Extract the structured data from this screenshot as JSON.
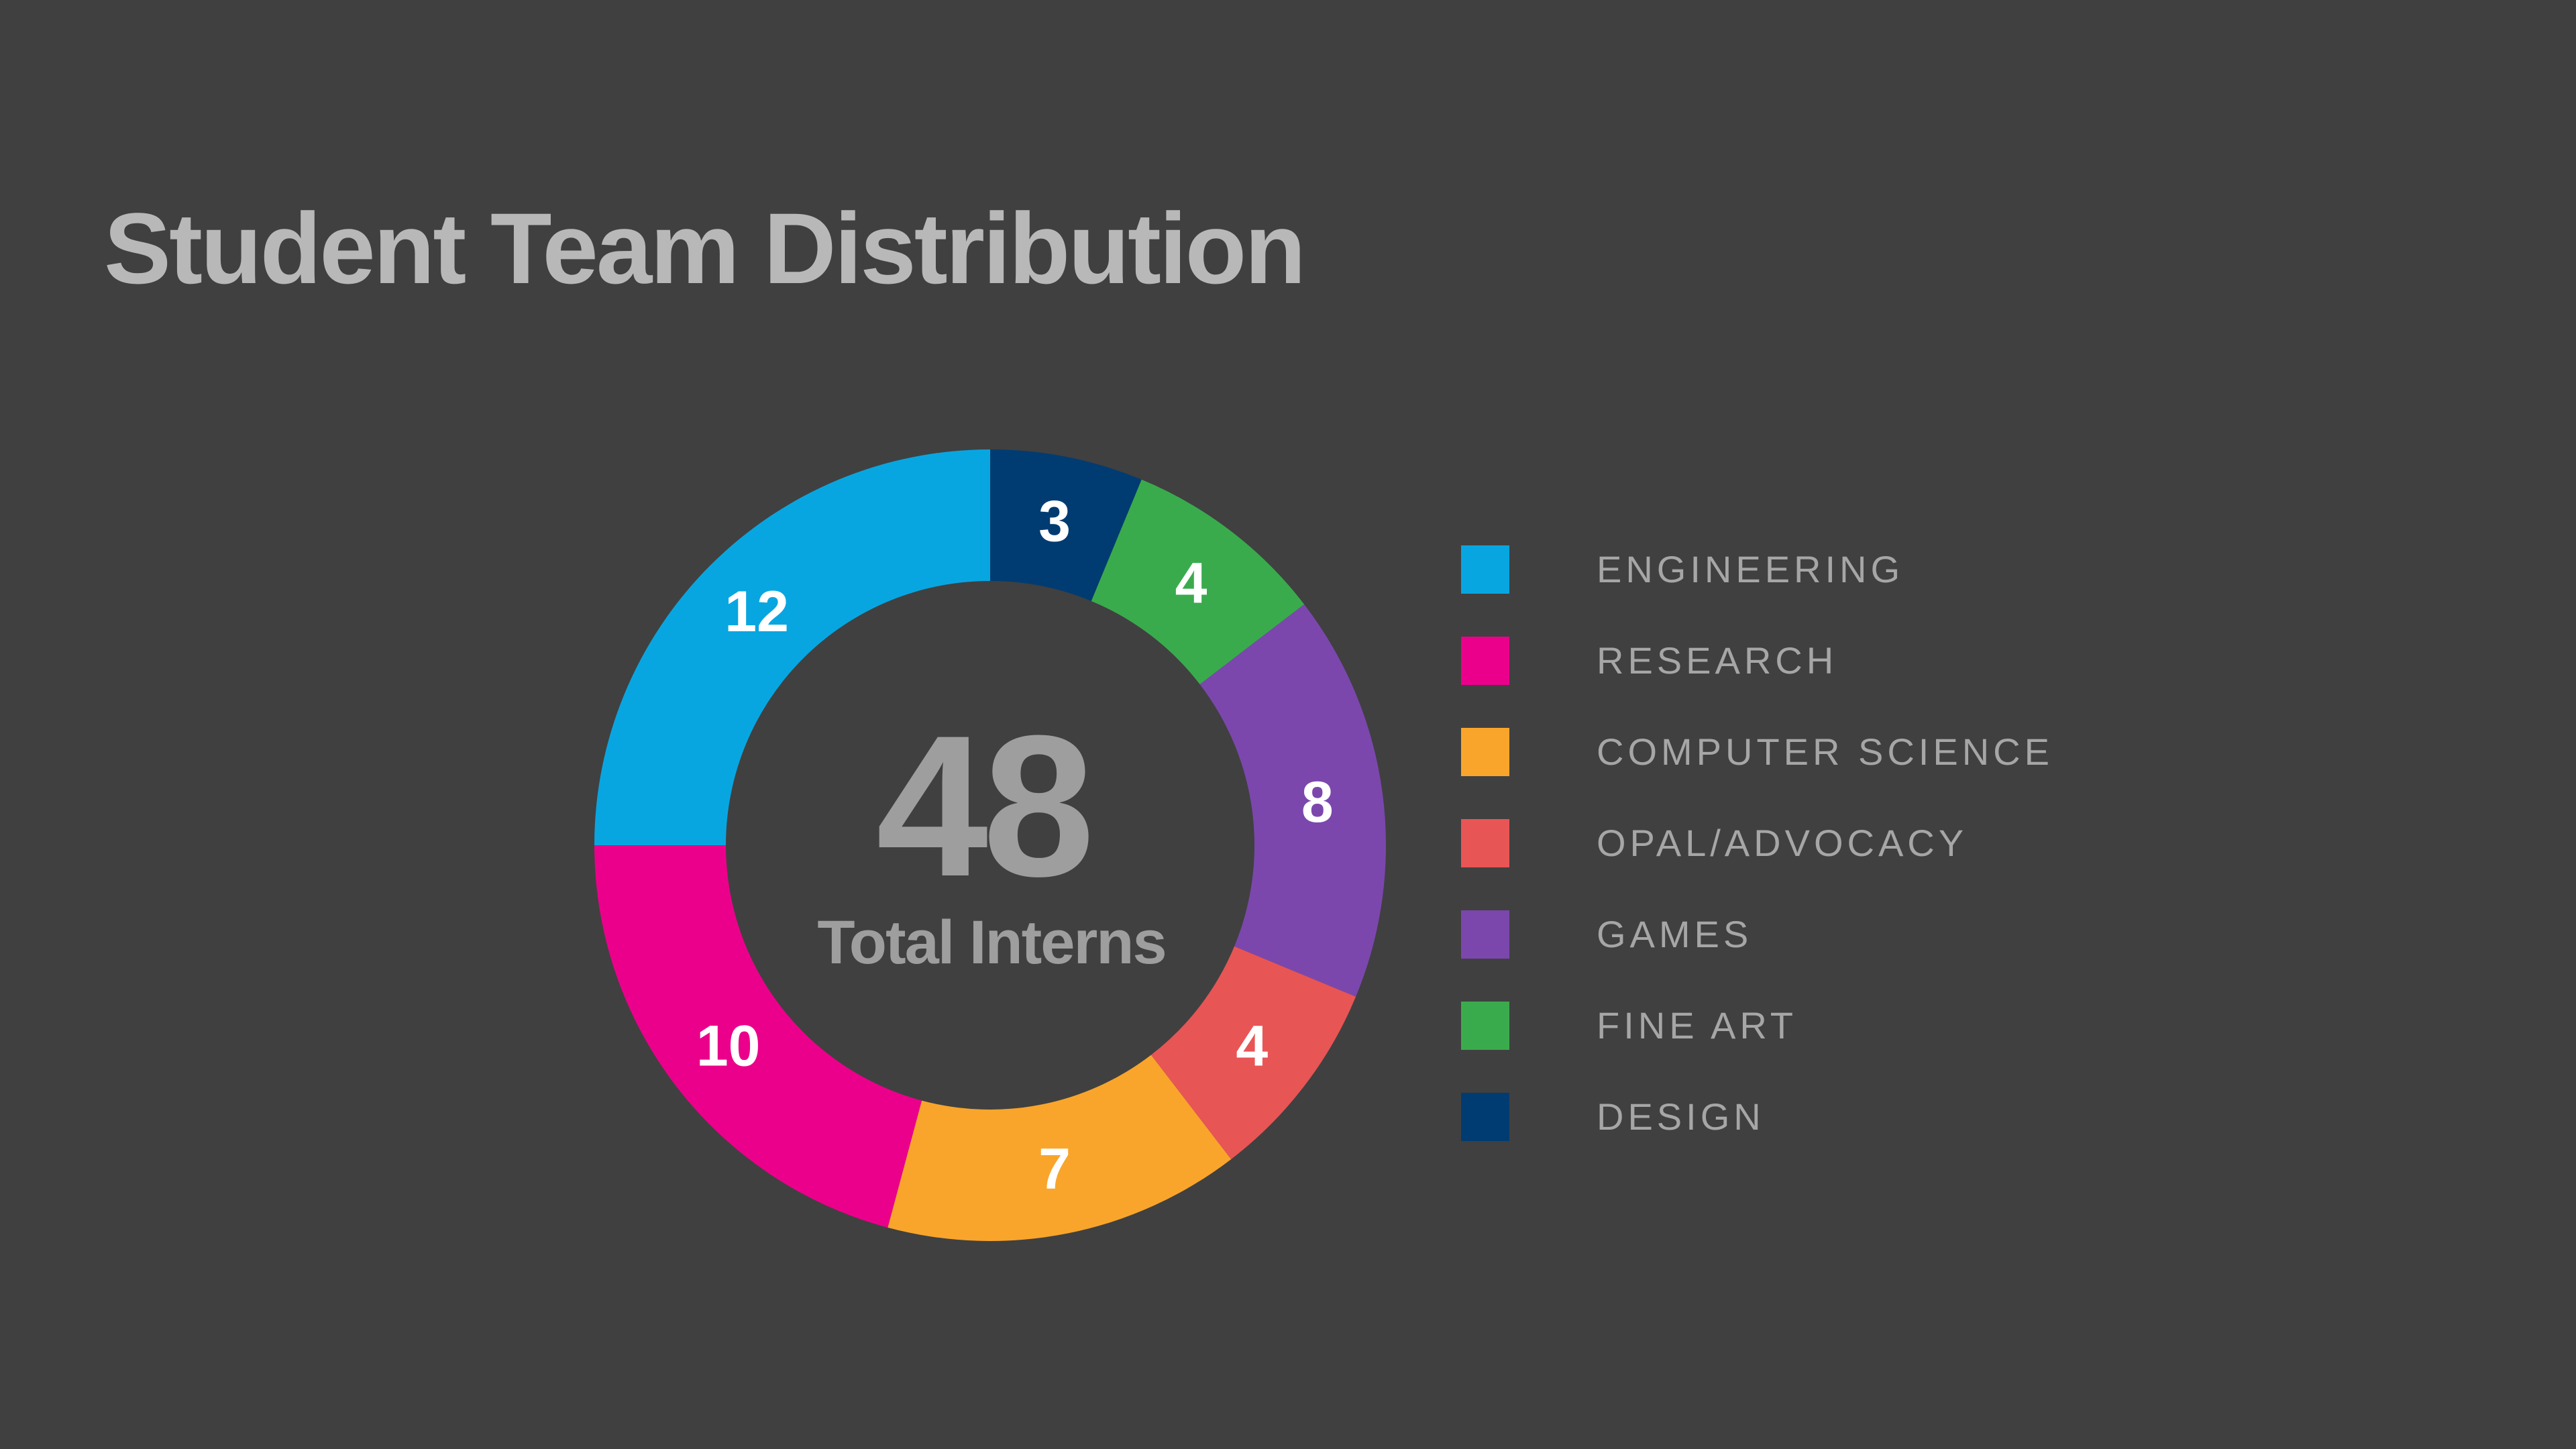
{
  "chart_data": {
    "type": "pie",
    "variant": "donut",
    "title": "Student Team Distribution",
    "center_value": "48",
    "center_caption": "Total Interns",
    "legend_position": "right",
    "slices": [
      {
        "label": "DESIGN",
        "value": 3,
        "color": "#003c71"
      },
      {
        "label": "FINE ART",
        "value": 4,
        "color": "#3aab4d"
      },
      {
        "label": "GAMES",
        "value": 8,
        "color": "#7b47ad"
      },
      {
        "label": "OPAL/ADVOCACY",
        "value": 4,
        "color": "#e85555"
      },
      {
        "label": "COMPUTER SCIENCE",
        "value": 7,
        "color": "#f9a52b"
      },
      {
        "label": "RESEARCH",
        "value": 10,
        "color": "#eb008b"
      },
      {
        "label": "ENGINEERING",
        "value": 12,
        "color": "#08a6e1"
      }
    ],
    "legend": [
      {
        "label": "ENGINEERING",
        "color": "#08a6e1"
      },
      {
        "label": "RESEARCH",
        "color": "#eb008b"
      },
      {
        "label": "COMPUTER SCIENCE",
        "color": "#f9a52b"
      },
      {
        "label": "OPAL/ADVOCACY",
        "color": "#e85555"
      },
      {
        "label": "GAMES",
        "color": "#7b47ad"
      },
      {
        "label": "FINE ART",
        "color": "#3aab4d"
      },
      {
        "label": "DESIGN",
        "color": "#003c71"
      }
    ]
  }
}
